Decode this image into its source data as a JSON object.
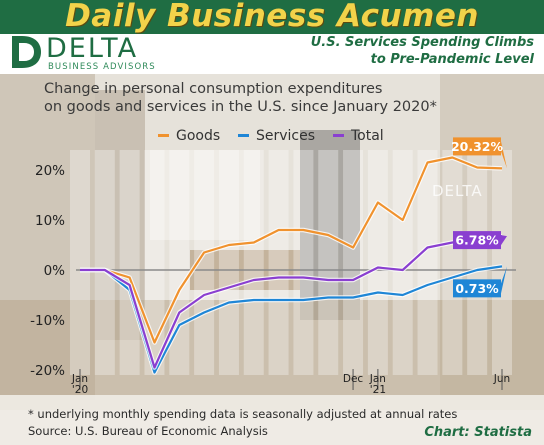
{
  "masthead": {
    "title": "Daily Business Acumen"
  },
  "brand": {
    "name": "DELTA",
    "tagline": "BUSINESS ADVISORS"
  },
  "headline": {
    "line1": "U.S. Services Spending Climbs",
    "line2": "to Pre-Pandemic Level"
  },
  "footer": {
    "note": "* underlying monthly spending data is seasonally adjusted at annual rates",
    "source": "Source: U.S. Bureau of Economic Analysis",
    "credit": "Chart: Statista"
  },
  "colors": {
    "brand_green": "#1f6d43",
    "masthead_text": "#f2d34a"
  },
  "chart_data": {
    "type": "line",
    "title": "Change in personal consumption expenditures",
    "subtitle": "on goods and services in the U.S. since January 2020*",
    "x": [
      "2020-01",
      "2020-02",
      "2020-03",
      "2020-04",
      "2020-05",
      "2020-06",
      "2020-07",
      "2020-08",
      "2020-09",
      "2020-10",
      "2020-11",
      "2020-12",
      "2021-01",
      "2021-02",
      "2021-03",
      "2021-04",
      "2021-05",
      "2021-06"
    ],
    "x_tick_labels": [
      {
        "index": 0,
        "line1": "Jan",
        "line2": "'20"
      },
      {
        "index": 11,
        "line1": "Dec",
        "line2": ""
      },
      {
        "index": 12,
        "line1": "Jan",
        "line2": "'21"
      },
      {
        "index": 17,
        "line1": "Jun",
        "line2": ""
      }
    ],
    "y_ticks": [
      20,
      10,
      0,
      -10,
      -20
    ],
    "y_tick_labels": [
      "20%",
      "10%",
      "0%",
      "-10%",
      "-20%"
    ],
    "ylim": [
      -22,
      28
    ],
    "series": [
      {
        "name": "Goods",
        "color": "#f0922e",
        "values": [
          0,
          0,
          -1.5,
          -14.5,
          -4,
          3.5,
          5,
          5.5,
          8,
          8,
          7,
          4.5,
          13.5,
          10,
          21.5,
          22.5,
          20.5,
          20.32
        ],
        "end_label": "20.32%"
      },
      {
        "name": "Services",
        "color": "#1f86d6",
        "values": [
          0,
          0,
          -4,
          -20.5,
          -11,
          -8.5,
          -6.5,
          -6,
          -6,
          -6,
          -5.5,
          -5.5,
          -4.5,
          -5,
          -3,
          -1.5,
          0,
          0.73
        ],
        "end_label": "0.73%"
      },
      {
        "name": "Total",
        "color": "#8a3fd0",
        "values": [
          0,
          0,
          -3,
          -19.5,
          -8.5,
          -5,
          -3.5,
          -2,
          -1.5,
          -1.5,
          -2,
          -2,
          0.5,
          0,
          4.5,
          5.5,
          6,
          6.78
        ],
        "end_label": "6.78%"
      }
    ],
    "legend": "top-center",
    "grid": false,
    "watermark": "DELTA"
  }
}
